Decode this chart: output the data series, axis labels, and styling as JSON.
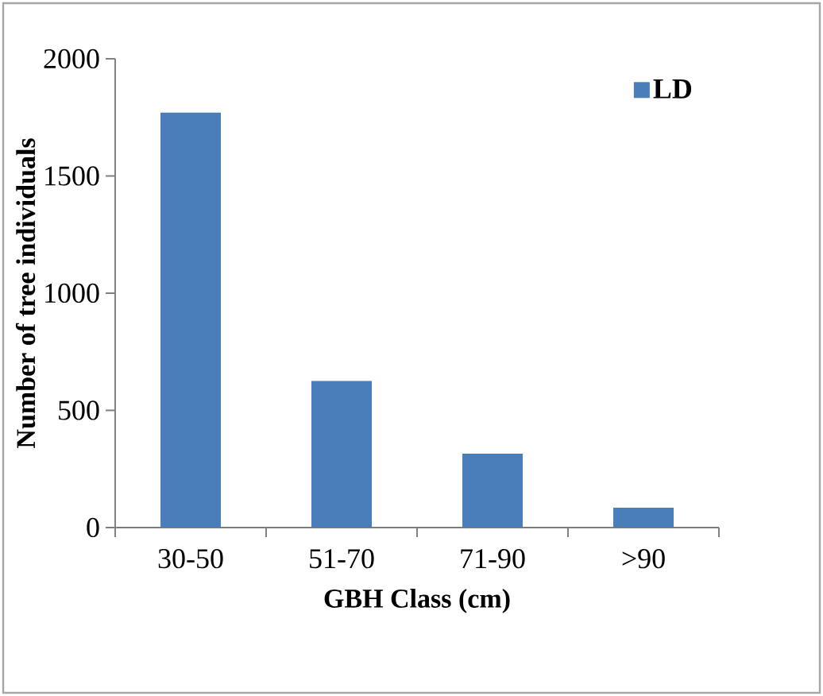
{
  "chart_data": {
    "type": "bar",
    "xlabel": "GBH Class (cm)",
    "ylabel": "Number of tree individuals",
    "categories": [
      "30-50",
      "51-70",
      "71-90",
      ">90"
    ],
    "series": [
      {
        "name": "LD",
        "color": "#4a7ebb",
        "values": [
          1770,
          625,
          315,
          85
        ]
      }
    ],
    "ylim": [
      0,
      2000
    ],
    "yticks": [
      0,
      500,
      1000,
      1500,
      2000
    ],
    "legend": "top right"
  }
}
